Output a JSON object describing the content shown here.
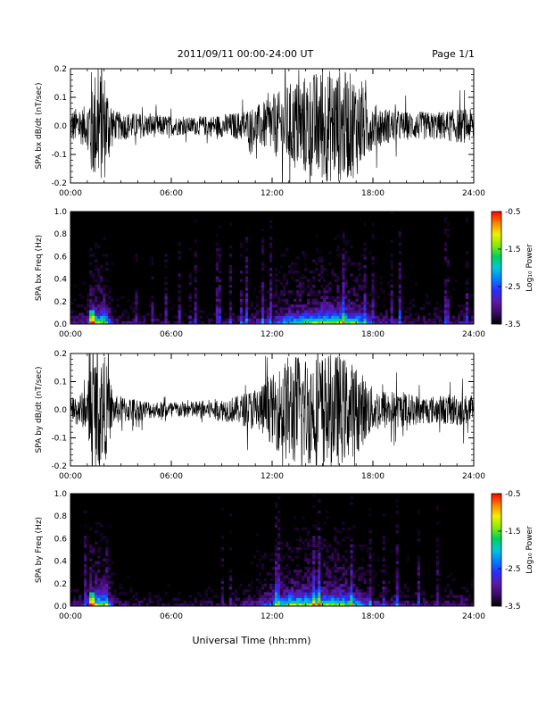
{
  "header": {
    "title": "2011/09/11  00:00-24:00 UT",
    "page": "Page 1/1"
  },
  "footer": {
    "xlabel": "Universal Time (hh:mm)"
  },
  "colorbar": {
    "label": "Log₁₀ Power",
    "ticks": [
      "-0.5",
      "-1.5",
      "-2.5",
      "-3.5"
    ],
    "range": [
      -3.5,
      -0.5
    ],
    "colors": [
      "#000000",
      "#3b0a66",
      "#5a1aa8",
      "#2a2dff",
      "#0080ff",
      "#00c8d8",
      "#00d05a",
      "#8cec00",
      "#f0f000",
      "#ff8000",
      "#ff0000"
    ]
  },
  "x_ticks": [
    "00:00",
    "06:00",
    "12:00",
    "18:00",
    "24:00"
  ],
  "chart_data": [
    {
      "type": "line",
      "title": "",
      "ylabel": "SPA bx dB/dt (nT/sec)",
      "xlabel": "",
      "xlim": [
        0,
        24
      ],
      "ylim": [
        -0.2,
        0.2
      ],
      "y_ticks": [
        "0.2",
        "0.1",
        "0.0",
        "-0.1",
        "-0.2"
      ],
      "amplitude_envelope": {
        "x_hours": [
          0,
          1,
          1.2,
          2,
          2.6,
          3,
          5,
          7,
          9,
          10,
          11,
          12,
          13,
          14,
          15,
          16,
          17,
          18,
          19,
          20,
          21,
          22,
          23,
          24
        ],
        "amplitude": [
          0.06,
          0.07,
          0.2,
          0.2,
          0.05,
          0.05,
          0.04,
          0.03,
          0.04,
          0.05,
          0.07,
          0.1,
          0.15,
          0.18,
          0.2,
          0.2,
          0.18,
          0.08,
          0.06,
          0.05,
          0.05,
          0.05,
          0.06,
          0.06
        ]
      }
    },
    {
      "type": "heatmap",
      "title": "",
      "ylabel": "SPA bx Freq (Hz)",
      "xlabel": "",
      "xlim": [
        0,
        24
      ],
      "ylim": [
        0,
        1.0
      ],
      "y_ticks": [
        "1.0",
        "0.8",
        "0.6",
        "0.4",
        "0.2",
        "0.0"
      ],
      "colorbar_label": "Log₁₀ Power",
      "zlim": [
        -3.5,
        -0.5
      ]
    },
    {
      "type": "line",
      "title": "",
      "ylabel": "SPA by dB/dt (nT/sec)",
      "xlabel": "",
      "xlim": [
        0,
        24
      ],
      "ylim": [
        -0.2,
        0.2
      ],
      "y_ticks": [
        "0.2",
        "0.1",
        "0.0",
        "-0.1",
        "-0.2"
      ],
      "amplitude_envelope": {
        "x_hours": [
          0,
          1,
          1.2,
          2,
          2.6,
          3,
          5,
          7,
          9,
          10,
          11,
          12,
          13,
          14,
          15,
          16,
          17,
          18,
          19,
          20,
          21,
          22,
          23,
          24
        ],
        "amplitude": [
          0.05,
          0.07,
          0.2,
          0.2,
          0.05,
          0.05,
          0.03,
          0.03,
          0.04,
          0.05,
          0.08,
          0.12,
          0.2,
          0.2,
          0.2,
          0.2,
          0.16,
          0.08,
          0.07,
          0.06,
          0.05,
          0.05,
          0.06,
          0.05
        ]
      }
    },
    {
      "type": "heatmap",
      "title": "",
      "ylabel": "SPA by Freq (Hz)",
      "xlabel": "Universal Time (hh:mm)",
      "xlim": [
        0,
        24
      ],
      "ylim": [
        0,
        1.0
      ],
      "y_ticks": [
        "1.0",
        "0.8",
        "0.6",
        "0.4",
        "0.2",
        "0.0"
      ],
      "colorbar_label": "Log₁₀ Power",
      "zlim": [
        -3.5,
        -0.5
      ]
    }
  ]
}
